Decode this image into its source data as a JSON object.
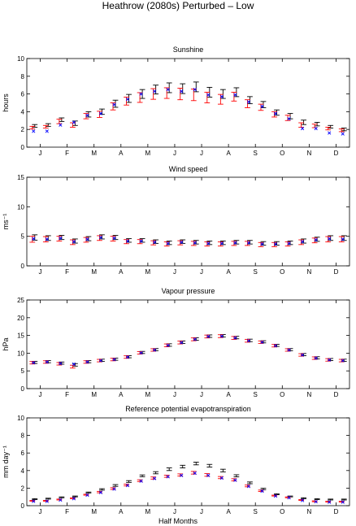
{
  "figure": {
    "title": "Heathrow (2080s) Perturbed – Low",
    "xlabel": "Half Months",
    "month_labels": [
      "J",
      "F",
      "M",
      "A",
      "M",
      "J",
      "J",
      "A",
      "S",
      "O",
      "N",
      "D"
    ],
    "colors": {
      "bars": "#000000",
      "red": "#ff0000",
      "blue": "#0000ff",
      "magenta": "#cc00cc"
    }
  },
  "chart_data": [
    {
      "type": "errorbar",
      "title": "Sunshine",
      "ylabel": "hours",
      "ylim": [
        0,
        10
      ],
      "yticks": [
        0,
        2,
        4,
        6,
        8,
        10
      ],
      "x": [
        1,
        2,
        3,
        4,
        5,
        6,
        7,
        8,
        9,
        10,
        11,
        12,
        13,
        14,
        15,
        16,
        17,
        18,
        19,
        20,
        21,
        22,
        23,
        24
      ],
      "series": [
        {
          "style": "black-bar",
          "values": [
            2.4,
            2.5,
            3.1,
            2.7,
            3.7,
            4.0,
            4.9,
            5.5,
            6.0,
            6.5,
            6.7,
            6.6,
            6.8,
            6.2,
            6.0,
            6.2,
            5.3,
            4.8,
            3.9,
            3.5,
            2.8,
            2.6,
            2.3,
            2.0
          ],
          "err": [
            0.15,
            0.15,
            0.2,
            0.25,
            0.3,
            0.3,
            0.4,
            0.45,
            0.5,
            0.5,
            0.55,
            0.55,
            0.55,
            0.55,
            0.5,
            0.5,
            0.4,
            0.35,
            0.3,
            0.3,
            0.25,
            0.2,
            0.15,
            0.15
          ]
        },
        {
          "style": "red-bar",
          "values": [
            2.2,
            2.3,
            2.9,
            2.5,
            3.5,
            3.7,
            4.6,
            5.2,
            5.6,
            6.0,
            6.1,
            6.0,
            5.9,
            5.6,
            5.4,
            5.7,
            4.9,
            4.5,
            3.7,
            3.3,
            2.5,
            2.4,
            2.1,
            1.9
          ],
          "err": [
            0.15,
            0.15,
            0.25,
            0.25,
            0.3,
            0.35,
            0.4,
            0.45,
            0.55,
            0.6,
            0.6,
            0.65,
            0.65,
            0.6,
            0.55,
            0.5,
            0.45,
            0.35,
            0.3,
            0.3,
            0.25,
            0.2,
            0.15,
            0.15
          ]
        },
        {
          "style": "blue-x",
          "values": [
            1.8,
            1.8,
            2.5,
            2.8,
            3.6,
            3.8,
            4.8,
            5.4,
            6.0,
            6.3,
            6.5,
            6.3,
            6.5,
            5.9,
            5.7,
            5.9,
            5.1,
            4.6,
            3.8,
            3.2,
            2.1,
            2.1,
            1.6,
            1.5
          ]
        }
      ]
    },
    {
      "type": "errorbar",
      "title": "Wind speed",
      "ylabel": "ms⁻¹",
      "ylim": [
        0,
        15
      ],
      "yticks": [
        0,
        5,
        10,
        15
      ],
      "x": [
        1,
        2,
        3,
        4,
        5,
        6,
        7,
        8,
        9,
        10,
        11,
        12,
        13,
        14,
        15,
        16,
        17,
        18,
        19,
        20,
        21,
        22,
        23,
        24
      ],
      "series": [
        {
          "style": "black-bar",
          "values": [
            4.8,
            4.7,
            4.8,
            4.2,
            4.6,
            4.9,
            4.8,
            4.3,
            4.3,
            4.1,
            3.9,
            4.1,
            4.0,
            3.9,
            3.9,
            4.0,
            4.0,
            3.8,
            3.8,
            3.9,
            4.2,
            4.5,
            4.7,
            4.7
          ],
          "err": [
            0.45,
            0.4,
            0.35,
            0.35,
            0.35,
            0.35,
            0.35,
            0.3,
            0.3,
            0.3,
            0.3,
            0.3,
            0.3,
            0.3,
            0.3,
            0.3,
            0.3,
            0.3,
            0.3,
            0.3,
            0.35,
            0.35,
            0.4,
            0.4
          ]
        },
        {
          "style": "red-bar",
          "values": [
            4.5,
            4.5,
            4.6,
            4.0,
            4.4,
            4.7,
            4.6,
            4.1,
            4.1,
            3.9,
            3.7,
            3.9,
            3.8,
            3.7,
            3.7,
            3.8,
            3.8,
            3.6,
            3.6,
            3.7,
            4.0,
            4.3,
            4.5,
            4.5
          ],
          "err": [
            0.5,
            0.45,
            0.4,
            0.4,
            0.4,
            0.4,
            0.4,
            0.35,
            0.35,
            0.35,
            0.35,
            0.35,
            0.35,
            0.35,
            0.35,
            0.35,
            0.35,
            0.35,
            0.35,
            0.35,
            0.4,
            0.4,
            0.45,
            0.45
          ]
        },
        {
          "style": "blue-x",
          "values": [
            4.6,
            4.5,
            4.7,
            4.1,
            4.5,
            4.8,
            4.7,
            4.2,
            4.2,
            4.0,
            3.8,
            4.0,
            3.9,
            3.8,
            3.8,
            3.9,
            3.9,
            3.7,
            3.7,
            3.8,
            4.1,
            4.4,
            4.6,
            4.5
          ]
        }
      ]
    },
    {
      "type": "errorbar",
      "title": "Vapour pressure",
      "ylabel": "hPa",
      "ylim": [
        0,
        25
      ],
      "yticks": [
        0,
        5,
        10,
        15,
        20,
        25
      ],
      "x": [
        1,
        2,
        3,
        4,
        5,
        6,
        7,
        8,
        9,
        10,
        11,
        12,
        13,
        14,
        15,
        16,
        17,
        18,
        19,
        20,
        21,
        22,
        23,
        24
      ],
      "series": [
        {
          "style": "black-bar",
          "values": [
            7.4,
            7.6,
            7.2,
            6.7,
            7.6,
            8.0,
            8.3,
            9.0,
            10.2,
            11.0,
            12.3,
            13.1,
            14.0,
            14.8,
            14.9,
            14.4,
            13.6,
            13.2,
            12.2,
            11.0,
            9.6,
            8.7,
            8.2,
            8.0
          ],
          "err": [
            0.3,
            0.3,
            0.3,
            0.35,
            0.3,
            0.3,
            0.3,
            0.3,
            0.3,
            0.3,
            0.35,
            0.35,
            0.35,
            0.35,
            0.35,
            0.35,
            0.35,
            0.3,
            0.3,
            0.3,
            0.3,
            0.3,
            0.3,
            0.3
          ]
        },
        {
          "style": "red-bar",
          "values": [
            7.3,
            7.5,
            7.0,
            6.2,
            7.5,
            7.9,
            8.2,
            8.9,
            10.1,
            10.9,
            12.2,
            13.0,
            13.9,
            14.7,
            14.8,
            14.3,
            13.5,
            13.1,
            12.1,
            10.9,
            9.5,
            8.6,
            8.1,
            7.9
          ],
          "err": [
            0.35,
            0.35,
            0.35,
            0.4,
            0.35,
            0.35,
            0.35,
            0.35,
            0.35,
            0.35,
            0.4,
            0.4,
            0.4,
            0.4,
            0.4,
            0.4,
            0.4,
            0.35,
            0.35,
            0.35,
            0.35,
            0.35,
            0.35,
            0.35
          ]
        },
        {
          "style": "blue-x",
          "values": [
            7.3,
            7.5,
            7.1,
            6.9,
            7.5,
            7.9,
            8.2,
            8.9,
            10.1,
            10.9,
            12.2,
            13.0,
            13.9,
            14.7,
            14.8,
            14.3,
            13.5,
            13.1,
            12.1,
            10.9,
            9.5,
            8.6,
            8.1,
            7.9
          ]
        }
      ]
    },
    {
      "type": "errorbar",
      "title": "Reference potential evapotranspiration",
      "ylabel": "mm day⁻¹",
      "ylim": [
        0,
        10
      ],
      "yticks": [
        0,
        2,
        4,
        6,
        8,
        10
      ],
      "x": [
        1,
        2,
        3,
        4,
        5,
        6,
        7,
        8,
        9,
        10,
        11,
        12,
        13,
        14,
        15,
        16,
        17,
        18,
        19,
        20,
        21,
        22,
        23,
        24
      ],
      "series": [
        {
          "style": "black-bar",
          "values": [
            0.75,
            0.8,
            0.95,
            1.05,
            1.5,
            1.85,
            2.3,
            2.75,
            3.4,
            3.75,
            4.15,
            4.45,
            4.8,
            4.55,
            4.0,
            3.4,
            2.6,
            1.9,
            1.3,
            1.05,
            0.85,
            0.75,
            0.7,
            0.7
          ],
          "err": [
            0.05,
            0.05,
            0.05,
            0.05,
            0.05,
            0.08,
            0.1,
            0.1,
            0.1,
            0.12,
            0.15,
            0.15,
            0.15,
            0.15,
            0.15,
            0.12,
            0.1,
            0.08,
            0.05,
            0.05,
            0.05,
            0.05,
            0.05,
            0.05
          ]
        },
        {
          "style": "red-bar",
          "values": [
            0.55,
            0.55,
            0.7,
            0.85,
            1.25,
            1.55,
            1.95,
            2.35,
            2.85,
            3.15,
            3.35,
            3.5,
            3.75,
            3.5,
            3.2,
            2.95,
            2.25,
            1.7,
            1.15,
            0.95,
            0.65,
            0.5,
            0.45,
            0.45
          ],
          "err": [
            0.05,
            0.05,
            0.05,
            0.05,
            0.05,
            0.08,
            0.1,
            0.1,
            0.1,
            0.12,
            0.12,
            0.12,
            0.15,
            0.15,
            0.12,
            0.12,
            0.1,
            0.08,
            0.05,
            0.05,
            0.05,
            0.05,
            0.05,
            0.05
          ]
        },
        {
          "style": "blue-x",
          "values": [
            0.5,
            0.5,
            0.65,
            0.8,
            1.2,
            1.5,
            1.9,
            2.3,
            2.8,
            3.1,
            3.3,
            3.45,
            3.7,
            3.45,
            3.15,
            2.9,
            2.2,
            1.65,
            1.1,
            0.9,
            0.6,
            0.45,
            0.4,
            0.4
          ]
        }
      ]
    }
  ]
}
